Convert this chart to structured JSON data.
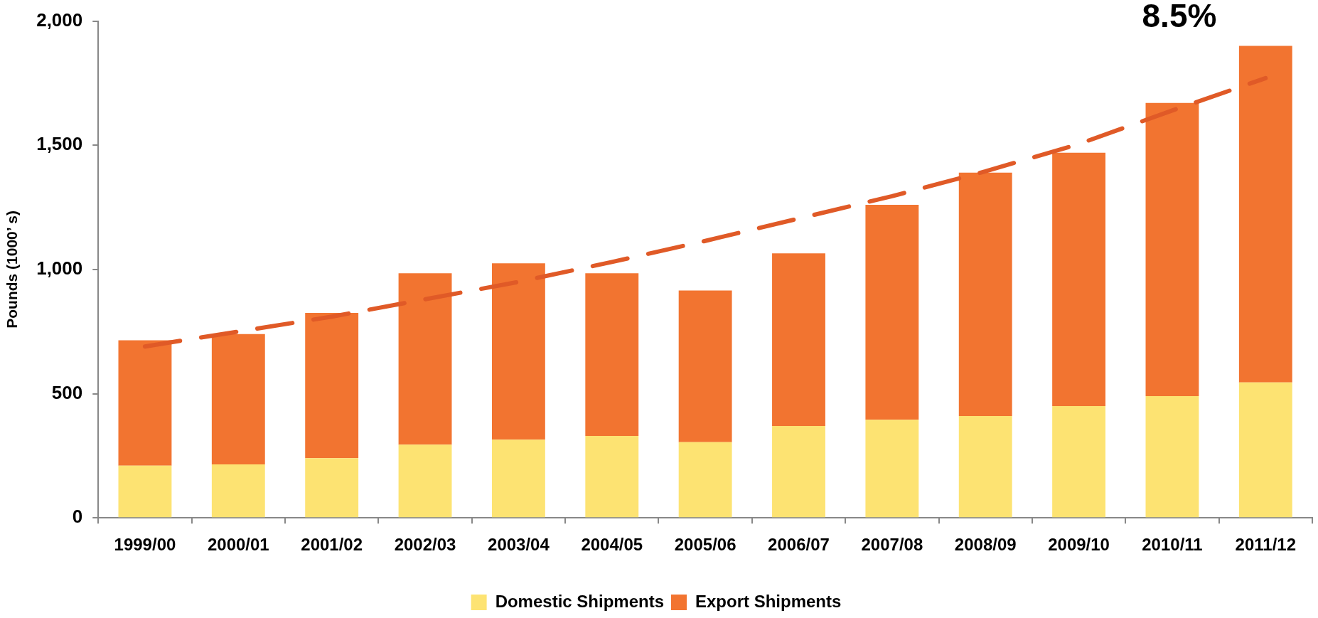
{
  "chart_data": {
    "type": "bar",
    "stacked": true,
    "categories": [
      "1999/00",
      "2000/01",
      "2001/02",
      "2002/03",
      "2003/04",
      "2004/05",
      "2005/06",
      "2006/07",
      "2007/08",
      "2008/09",
      "2009/10",
      "2010/11",
      "2011/12"
    ],
    "series": [
      {
        "name": "Domestic Shipments",
        "color": "#fde372",
        "values": [
          210,
          215,
          240,
          295,
          315,
          330,
          305,
          370,
          395,
          410,
          450,
          490,
          545
        ]
      },
      {
        "name": "Export Shipments",
        "color": "#f27430",
        "values": [
          505,
          525,
          585,
          690,
          710,
          655,
          610,
          695,
          865,
          980,
          1020,
          1180,
          1355
        ]
      },
      {
        "type": "line",
        "color": "#e05a27",
        "line_style": "dashed",
        "values": [
          690,
          750,
          810,
          880,
          950,
          1030,
          1115,
          1205,
          1295,
          1395,
          1505,
          1640,
          1770
        ]
      }
    ],
    "ylabel": "Pounds (1000’ s)",
    "ylim": [
      0,
      2000
    ],
    "yticks": [
      0,
      500,
      {
        "value": 1000,
        "label": "1,000"
      },
      {
        "value": 1500,
        "label": "1,500"
      },
      {
        "value": 2000,
        "label": "2,000"
      }
    ],
    "grid": false,
    "legend": "bottom",
    "annotations": [
      "8.5%"
    ]
  }
}
